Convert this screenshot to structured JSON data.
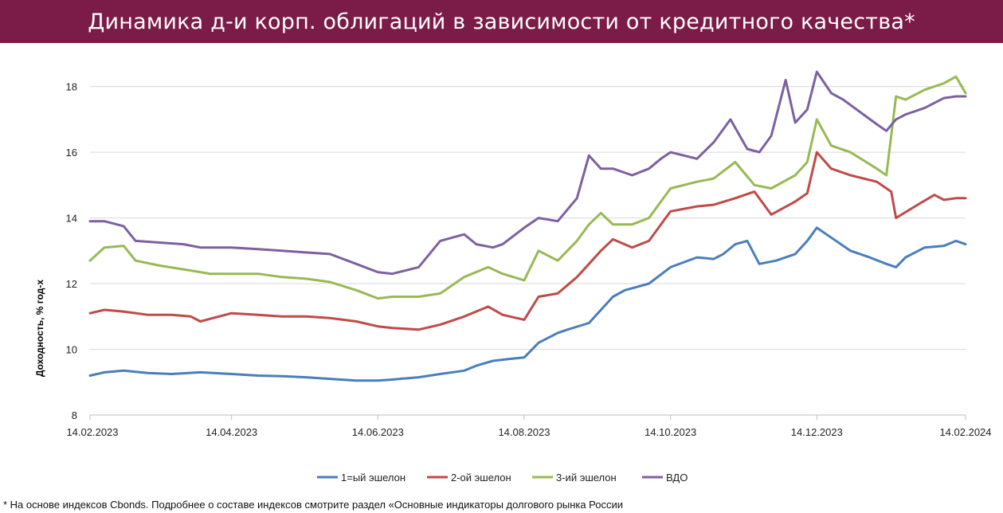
{
  "title": "Динамика д-и корп. облигаций  в зависимости от кредитного качества*",
  "footnote": "* На основе индексов Cbonds. Подробнее о составе индексов смотрите раздел «Основные индикаторы долгового рынка России",
  "colors": {
    "header_bg": "#7b1c48",
    "series": [
      "#4a7ebb",
      "#be4b48",
      "#98b954",
      "#7d60a0"
    ]
  },
  "chart_data": {
    "type": "line",
    "title": "",
    "xlabel": "",
    "ylabel": "Доходность, % год-х",
    "ylim": [
      8,
      18.5
    ],
    "xlim": [
      "2023-02-14",
      "2024-02-14"
    ],
    "yticks": [
      "8",
      "10",
      "12",
      "14",
      "16",
      "18"
    ],
    "xticks": [
      "14.02.2023",
      "14.04.2023",
      "14.06.2023",
      "14.08.2023",
      "14.10.2023",
      "14.12.2023",
      "14.02.2024"
    ],
    "grid": "horizontal",
    "legend": "bottom",
    "series": [
      {
        "name": "1=ый эшелон",
        "x": [
          "2023-02-14",
          "2023-02-20",
          "2023-02-28",
          "2023-03-10",
          "2023-03-20",
          "2023-04-01",
          "2023-04-14",
          "2023-04-25",
          "2023-05-05",
          "2023-05-15",
          "2023-05-25",
          "2023-06-05",
          "2023-06-14",
          "2023-06-20",
          "2023-07-01",
          "2023-07-10",
          "2023-07-20",
          "2023-07-25",
          "2023-08-01",
          "2023-08-07",
          "2023-08-14",
          "2023-08-20",
          "2023-08-28",
          "2023-09-01",
          "2023-09-10",
          "2023-09-20",
          "2023-09-25",
          "2023-09-30",
          "2023-10-05",
          "2023-10-14",
          "2023-10-25",
          "2023-11-01",
          "2023-11-05",
          "2023-11-10",
          "2023-11-15",
          "2023-11-20",
          "2023-11-27",
          "2023-12-05",
          "2023-12-10",
          "2023-12-14",
          "2023-12-20",
          "2023-12-28",
          "2024-01-05",
          "2024-01-12",
          "2024-01-16",
          "2024-01-20",
          "2024-01-28",
          "2024-02-05",
          "2024-02-10",
          "2024-02-14"
        ],
        "values": [
          9.2,
          9.3,
          9.35,
          9.28,
          9.25,
          9.3,
          9.25,
          9.2,
          9.18,
          9.15,
          9.1,
          9.05,
          9.05,
          9.08,
          9.15,
          9.25,
          9.35,
          9.5,
          9.65,
          9.7,
          9.75,
          10.2,
          10.5,
          10.6,
          10.8,
          11.6,
          11.8,
          11.9,
          12.0,
          12.5,
          12.8,
          12.75,
          12.9,
          13.2,
          13.3,
          12.6,
          12.7,
          12.9,
          13.3,
          13.7,
          13.4,
          13.0,
          12.8,
          12.6,
          12.5,
          12.8,
          13.1,
          13.15,
          13.3,
          13.2
        ]
      },
      {
        "name": "2-ой эшелон",
        "x": [
          "2023-02-14",
          "2023-02-20",
          "2023-02-28",
          "2023-03-10",
          "2023-03-20",
          "2023-03-28",
          "2023-04-01",
          "2023-04-14",
          "2023-04-25",
          "2023-05-05",
          "2023-05-15",
          "2023-05-25",
          "2023-06-05",
          "2023-06-14",
          "2023-06-20",
          "2023-07-01",
          "2023-07-10",
          "2023-07-20",
          "2023-07-30",
          "2023-08-05",
          "2023-08-14",
          "2023-08-20",
          "2023-08-28",
          "2023-09-05",
          "2023-09-10",
          "2023-09-15",
          "2023-09-20",
          "2023-09-28",
          "2023-10-05",
          "2023-10-14",
          "2023-10-25",
          "2023-11-01",
          "2023-11-10",
          "2023-11-18",
          "2023-11-25",
          "2023-12-05",
          "2023-12-10",
          "2023-12-14",
          "2023-12-20",
          "2023-12-28",
          "2024-01-08",
          "2024-01-14",
          "2024-01-16",
          "2024-01-25",
          "2024-02-01",
          "2024-02-05",
          "2024-02-10",
          "2024-02-14"
        ],
        "values": [
          11.1,
          11.2,
          11.15,
          11.05,
          11.05,
          11.0,
          10.85,
          11.1,
          11.05,
          11.0,
          11.0,
          10.95,
          10.85,
          10.7,
          10.65,
          10.6,
          10.75,
          11.0,
          11.3,
          11.05,
          10.9,
          11.6,
          11.7,
          12.2,
          12.6,
          13.0,
          13.35,
          13.1,
          13.3,
          14.2,
          14.35,
          14.4,
          14.6,
          14.8,
          14.1,
          14.5,
          14.75,
          16.0,
          15.5,
          15.3,
          15.1,
          14.8,
          14.0,
          14.4,
          14.7,
          14.55,
          14.6,
          14.6
        ]
      },
      {
        "name": "3-ий эшелон",
        "x": [
          "2023-02-14",
          "2023-02-20",
          "2023-02-28",
          "2023-03-05",
          "2023-03-15",
          "2023-03-28",
          "2023-04-05",
          "2023-04-14",
          "2023-04-25",
          "2023-05-05",
          "2023-05-15",
          "2023-05-25",
          "2023-06-05",
          "2023-06-14",
          "2023-06-20",
          "2023-07-01",
          "2023-07-10",
          "2023-07-20",
          "2023-07-30",
          "2023-08-05",
          "2023-08-14",
          "2023-08-20",
          "2023-08-28",
          "2023-09-05",
          "2023-09-10",
          "2023-09-15",
          "2023-09-20",
          "2023-09-28",
          "2023-10-05",
          "2023-10-14",
          "2023-10-25",
          "2023-11-01",
          "2023-11-10",
          "2023-11-18",
          "2023-11-25",
          "2023-12-05",
          "2023-12-10",
          "2023-12-14",
          "2023-12-20",
          "2023-12-28",
          "2024-01-08",
          "2024-01-12",
          "2024-01-16",
          "2024-01-20",
          "2024-01-28",
          "2024-02-05",
          "2024-02-10",
          "2024-02-14"
        ],
        "values": [
          12.7,
          13.1,
          13.15,
          12.7,
          12.55,
          12.4,
          12.3,
          12.3,
          12.3,
          12.2,
          12.15,
          12.05,
          11.8,
          11.55,
          11.6,
          11.6,
          11.7,
          12.2,
          12.5,
          12.3,
          12.1,
          13.0,
          12.7,
          13.3,
          13.8,
          14.15,
          13.8,
          13.8,
          14.0,
          14.9,
          15.1,
          15.2,
          15.7,
          15.0,
          14.9,
          15.3,
          15.7,
          17.0,
          16.2,
          16.0,
          15.5,
          15.3,
          17.7,
          17.6,
          17.9,
          18.1,
          18.3,
          17.8
        ]
      },
      {
        "name": "ВДО",
        "x": [
          "2023-02-14",
          "2023-02-20",
          "2023-02-28",
          "2023-03-05",
          "2023-03-15",
          "2023-03-25",
          "2023-04-01",
          "2023-04-14",
          "2023-04-25",
          "2023-05-05",
          "2023-05-15",
          "2023-05-25",
          "2023-06-05",
          "2023-06-14",
          "2023-06-20",
          "2023-07-01",
          "2023-07-10",
          "2023-07-20",
          "2023-07-25",
          "2023-08-01",
          "2023-08-05",
          "2023-08-14",
          "2023-08-20",
          "2023-08-28",
          "2023-09-05",
          "2023-09-10",
          "2023-09-15",
          "2023-09-20",
          "2023-09-28",
          "2023-10-05",
          "2023-10-10",
          "2023-10-14",
          "2023-10-25",
          "2023-11-01",
          "2023-11-08",
          "2023-11-15",
          "2023-11-20",
          "2023-11-25",
          "2023-12-01",
          "2023-12-05",
          "2023-12-10",
          "2023-12-14",
          "2023-12-20",
          "2023-12-25",
          "2024-01-08",
          "2024-01-12",
          "2024-01-16",
          "2024-01-20",
          "2024-01-28",
          "2024-02-05",
          "2024-02-10",
          "2024-02-14"
        ],
        "values": [
          13.9,
          13.9,
          13.75,
          13.3,
          13.25,
          13.2,
          13.1,
          13.1,
          13.05,
          13.0,
          12.95,
          12.9,
          12.6,
          12.35,
          12.3,
          12.5,
          13.3,
          13.5,
          13.2,
          13.1,
          13.2,
          13.7,
          14.0,
          13.9,
          14.6,
          15.9,
          15.5,
          15.5,
          15.3,
          15.5,
          15.8,
          16.0,
          15.8,
          16.3,
          17.0,
          16.1,
          16.0,
          16.5,
          18.2,
          16.9,
          17.3,
          18.45,
          17.8,
          17.6,
          16.85,
          16.65,
          17.0,
          17.15,
          17.35,
          17.65,
          17.7,
          17.7
        ]
      }
    ]
  }
}
